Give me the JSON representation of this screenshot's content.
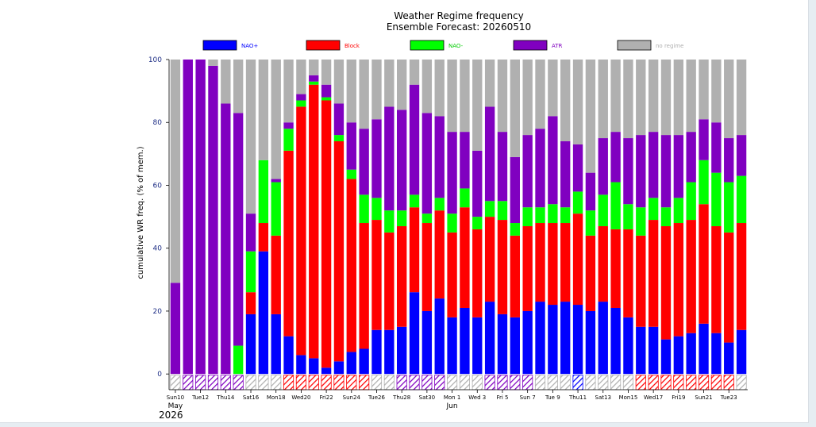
{
  "chart_data": {
    "type": "bar",
    "stacked": true,
    "title": "Weather Regime frequency",
    "subtitle": "Ensemble Forecast: 20260510",
    "ylabel": "cumulative WR freq. (% of mem.)",
    "xlabel": "",
    "ylim": [
      -5,
      100
    ],
    "yticks": [
      "0",
      "20",
      "40",
      "60",
      "80",
      "100"
    ],
    "legend": "top",
    "colors": {
      "NAO+": "#0000ff",
      "Block": "#ff0000",
      "NAO-": "#00ff00",
      "ATR": "#8000c0",
      "no regime": "#b0b0b0",
      "weekend_label": "#ff0000",
      "axis_text": "#1f2f86"
    },
    "legend_entries": [
      {
        "name": "NAO+",
        "color": "#0000ff",
        "text_color": "#0000ff"
      },
      {
        "name": "Block",
        "color": "#ff0000",
        "text_color": "#ff0000"
      },
      {
        "name": "NAO-",
        "color": "#00ff00",
        "text_color": "#00cc00"
      },
      {
        "name": "ATR",
        "color": "#8000c0",
        "text_color": "#8000c0"
      },
      {
        "name": "no regime",
        "color": "#b0b0b0",
        "text_color": "#b0b0b0"
      }
    ],
    "x": [
      "2026-05-10",
      "2026-05-11",
      "2026-05-12",
      "2026-05-13",
      "2026-05-14",
      "2026-05-15",
      "2026-05-16",
      "2026-05-17",
      "2026-05-18",
      "2026-05-19",
      "2026-05-20",
      "2026-05-21",
      "2026-05-22",
      "2026-05-23",
      "2026-05-24",
      "2026-05-25",
      "2026-05-26",
      "2026-05-27",
      "2026-05-28",
      "2026-05-29",
      "2026-05-30",
      "2026-05-31",
      "2026-06-01",
      "2026-06-02",
      "2026-06-03",
      "2026-06-04",
      "2026-06-05",
      "2026-06-06",
      "2026-06-07",
      "2026-06-08",
      "2026-06-09",
      "2026-06-10",
      "2026-06-11",
      "2026-06-12",
      "2026-06-13",
      "2026-06-14",
      "2026-06-15",
      "2026-06-16",
      "2026-06-17",
      "2026-06-18",
      "2026-06-19",
      "2026-06-20",
      "2026-06-21",
      "2026-06-22",
      "2026-06-23",
      "2026-06-24"
    ],
    "series": [
      {
        "name": "NAO+",
        "values": [
          0,
          0,
          0,
          0,
          0,
          0,
          19,
          39,
          19,
          12,
          6,
          5,
          2,
          4,
          7,
          8,
          14,
          14,
          15,
          26,
          20,
          24,
          18,
          21,
          18,
          23,
          19,
          18,
          20,
          23,
          22,
          23,
          22,
          20,
          23,
          21,
          18,
          15,
          15,
          11,
          12,
          13,
          16,
          13,
          10,
          14
        ]
      },
      {
        "name": "Block",
        "values": [
          0,
          0,
          0,
          0,
          0,
          0,
          7,
          9,
          25,
          59,
          79,
          87,
          85,
          70,
          55,
          40,
          35,
          31,
          32,
          27,
          28,
          28,
          27,
          32,
          28,
          27,
          30,
          26,
          27,
          25,
          26,
          25,
          29,
          24,
          24,
          25,
          28,
          29,
          34,
          36,
          36,
          36,
          38,
          34,
          35,
          34
        ]
      },
      {
        "name": "NAO-",
        "values": [
          0,
          0,
          0,
          0,
          0,
          9,
          13,
          20,
          17,
          7,
          2,
          1,
          1,
          2,
          3,
          9,
          7,
          7,
          5,
          4,
          3,
          4,
          6,
          6,
          4,
          5,
          6,
          4,
          6,
          5,
          6,
          5,
          7,
          8,
          10,
          15,
          8,
          9,
          7,
          6,
          8,
          12,
          14,
          17,
          16,
          15
        ]
      },
      {
        "name": "ATR",
        "values": [
          29,
          100,
          100,
          98,
          86,
          74,
          12,
          0,
          1,
          2,
          2,
          2,
          4,
          10,
          15,
          21,
          25,
          33,
          32,
          35,
          32,
          26,
          26,
          18,
          21,
          30,
          22,
          21,
          23,
          25,
          28,
          21,
          15,
          12,
          18,
          16,
          21,
          23,
          21,
          23,
          20,
          16,
          13,
          16,
          14,
          13
        ]
      },
      {
        "name": "no regime",
        "values": [
          71,
          0,
          0,
          2,
          14,
          17,
          49,
          32,
          38,
          20,
          11,
          5,
          8,
          14,
          20,
          22,
          19,
          15,
          16,
          8,
          17,
          18,
          23,
          23,
          29,
          15,
          23,
          31,
          24,
          22,
          18,
          26,
          27,
          36,
          25,
          23,
          25,
          24,
          23,
          24,
          24,
          23,
          19,
          20,
          25,
          24
        ]
      }
    ],
    "daily_regime": [
      "none",
      "ATR",
      "ATR",
      "ATR",
      "ATR",
      "ATR",
      "none",
      "none",
      "none",
      "Block",
      "Block",
      "Block",
      "Block",
      "Block",
      "Block",
      "Block",
      "none",
      "none",
      "ATR",
      "ATR",
      "ATR",
      "ATR",
      "none",
      "none",
      "none",
      "ATR",
      "ATR",
      "ATR",
      "ATR",
      "none",
      "none",
      "none",
      "NAO+",
      "none",
      "none",
      "none",
      "none",
      "Block",
      "Block",
      "Block",
      "Block",
      "Block",
      "Block",
      "Block",
      "Block",
      "none"
    ],
    "x_tick_labels": [
      {
        "index": 0,
        "label": "Sun10",
        "weekend": true
      },
      {
        "index": 2,
        "label": "Tue12",
        "weekend": false
      },
      {
        "index": 4,
        "label": "Thu14",
        "weekend": false
      },
      {
        "index": 6,
        "label": "Sat16",
        "weekend": false
      },
      {
        "index": 8,
        "label": "Mon18",
        "weekend": false
      },
      {
        "index": 10,
        "label": "Wed20",
        "weekend": false
      },
      {
        "index": 12,
        "label": "Fri22",
        "weekend": false
      },
      {
        "index": 14,
        "label": "Sun24",
        "weekend": true
      },
      {
        "index": 16,
        "label": "Tue26",
        "weekend": false
      },
      {
        "index": 18,
        "label": "Thu28",
        "weekend": false
      },
      {
        "index": 20,
        "label": "Sat30",
        "weekend": false
      },
      {
        "index": 22,
        "label": "Mon 1",
        "weekend": false
      },
      {
        "index": 24,
        "label": "Wed 3",
        "weekend": false
      },
      {
        "index": 26,
        "label": "Fri 5",
        "weekend": false
      },
      {
        "index": 28,
        "label": "Sun 7",
        "weekend": true
      },
      {
        "index": 30,
        "label": "Tue 9",
        "weekend": false
      },
      {
        "index": 32,
        "label": "Thu11",
        "weekend": false
      },
      {
        "index": 34,
        "label": "Sat13",
        "weekend": false
      },
      {
        "index": 36,
        "label": "Mon15",
        "weekend": false
      },
      {
        "index": 38,
        "label": "Wed17",
        "weekend": false
      },
      {
        "index": 40,
        "label": "Fri19",
        "weekend": false
      },
      {
        "index": 42,
        "label": "Sun21",
        "weekend": true
      },
      {
        "index": 44,
        "label": "Tue23",
        "weekend": false
      }
    ],
    "month_labels": [
      {
        "index": 0,
        "label": "May"
      },
      {
        "index": 22,
        "label": "Jun"
      }
    ],
    "year_label": "2026",
    "grid": false
  }
}
